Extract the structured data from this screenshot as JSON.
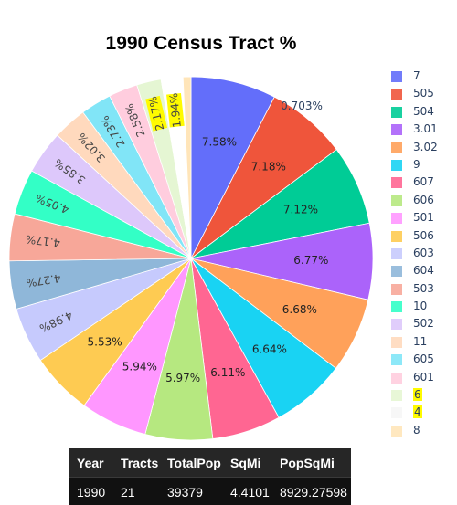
{
  "chart_data": {
    "type": "pie",
    "title": "1990 Census Tract %",
    "slices": [
      {
        "label": "7",
        "value": 7.58,
        "text": "7.58%",
        "color": "#636efa"
      },
      {
        "label": "505",
        "value": 7.18,
        "text": "7.18%",
        "color": "#ef553b"
      },
      {
        "label": "504",
        "value": 7.12,
        "text": "7.12%",
        "color": "#00cc96"
      },
      {
        "label": "3.01",
        "value": 6.77,
        "text": "6.77%",
        "color": "#ab63fa"
      },
      {
        "label": "3.02",
        "value": 6.68,
        "text": "6.68%",
        "color": "#ffa15a"
      },
      {
        "label": "9",
        "value": 6.64,
        "text": "6.64%",
        "color": "#19d3f3"
      },
      {
        "label": "607",
        "value": 6.11,
        "text": "6.11%",
        "color": "#ff6692"
      },
      {
        "label": "606",
        "value": 5.97,
        "text": "5.97%",
        "color": "#b6e880"
      },
      {
        "label": "501",
        "value": 5.94,
        "text": "5.94%",
        "color": "#ff97ff"
      },
      {
        "label": "506",
        "value": 5.53,
        "text": "5.53%",
        "color": "#fecb52"
      },
      {
        "label": "603",
        "value": 4.98,
        "text": "4.98%",
        "color": "#c6cafd"
      },
      {
        "label": "604",
        "value": 4.27,
        "text": "4.27%",
        "color": "#8fb7d9"
      },
      {
        "label": "503",
        "value": 4.17,
        "text": "4.17%",
        "color": "#f7a799"
      },
      {
        "label": "10",
        "value": 4.05,
        "text": "4.05%",
        "color": "#33ffc6"
      },
      {
        "label": "502",
        "value": 3.85,
        "text": "3.85%",
        "color": "#ddc8fb"
      },
      {
        "label": "11",
        "value": 3.02,
        "text": "3.02%",
        "color": "#ffd9bd"
      },
      {
        "label": "605",
        "value": 2.73,
        "text": "2.73%",
        "color": "#81e5f7"
      },
      {
        "label": "601",
        "value": 2.58,
        "text": "2.58%",
        "color": "#ffcdde"
      },
      {
        "label": "6",
        "value": 2.17,
        "text": "2.17%",
        "color": "#e5f6d3",
        "highlight": true
      },
      {
        "label": "4",
        "value": 1.94,
        "text": "1.94%",
        "color": "#ffffff",
        "highlight": true
      },
      {
        "label": "8",
        "value": 0.703,
        "text": "0.703%",
        "color": "#ffe5b9"
      }
    ],
    "legend_position": "right"
  },
  "table": {
    "headers": [
      "Year",
      "Tracts",
      "TotalPop",
      "SqMi",
      "PopSqMi"
    ],
    "row": [
      "1990",
      "21",
      "39379",
      "4.4101",
      "8929.27598"
    ]
  }
}
